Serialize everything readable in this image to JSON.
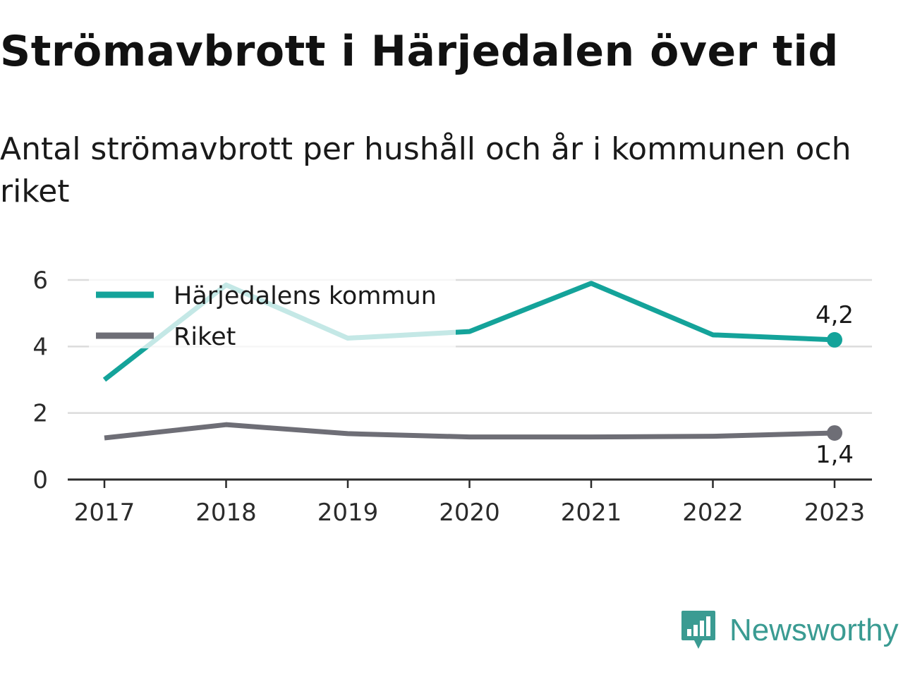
{
  "title": "Strömavbrott i Härjedalen över tid",
  "subtitle": "Antal strömavbrott per hushåll och år i kommunen och riket",
  "brand": {
    "name": "Newsworthy",
    "icon": "newsworthy-logo-icon",
    "color": "#3a9b92"
  },
  "chart_data": {
    "type": "line",
    "categories": [
      "2017",
      "2018",
      "2019",
      "2020",
      "2021",
      "2022",
      "2023"
    ],
    "series": [
      {
        "name": "Härjedalens kommun",
        "color": "#14a39a",
        "values": [
          3.0,
          5.85,
          4.25,
          4.45,
          5.9,
          4.35,
          4.2
        ],
        "end_label": "4,2"
      },
      {
        "name": "Riket",
        "color": "#6e6e76",
        "values": [
          1.25,
          1.65,
          1.38,
          1.28,
          1.28,
          1.3,
          1.4
        ],
        "end_label": "1,4"
      }
    ],
    "y_ticks": [
      "0",
      "2",
      "4",
      "6"
    ],
    "ylim": [
      0,
      6
    ],
    "grid": true,
    "legend_position": "top-left"
  }
}
